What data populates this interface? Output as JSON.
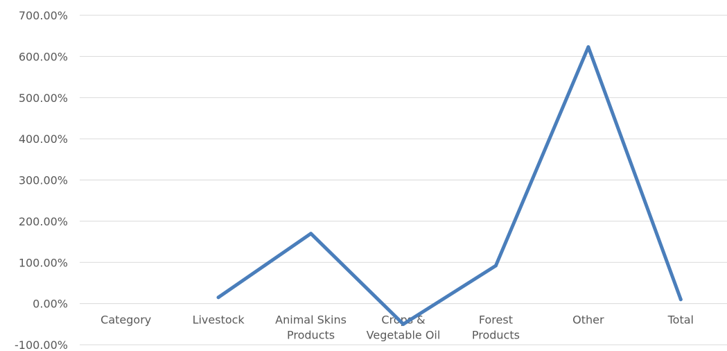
{
  "chart_data": {
    "type": "line",
    "categories": [
      [
        "Category"
      ],
      [
        "Livestock"
      ],
      [
        "Animal Skins",
        "Products"
      ],
      [
        "Crops &",
        "Vegetable Oil"
      ],
      [
        "Forest",
        "Products"
      ],
      [
        "Other"
      ],
      [
        "Total"
      ]
    ],
    "series": [
      {
        "values": [
          null,
          15,
          170,
          -50,
          92,
          623,
          10
        ]
      }
    ],
    "y_ticks": [
      "700.00%",
      "600.00%",
      "500.00%",
      "400.00%",
      "300.00%",
      "200.00%",
      "100.00%",
      "0.00%",
      "-100.00%"
    ],
    "ylim": [
      -100,
      700
    ],
    "grid": true,
    "line_color": "#4a7ebb",
    "grid_color": "#d9d9d9"
  }
}
